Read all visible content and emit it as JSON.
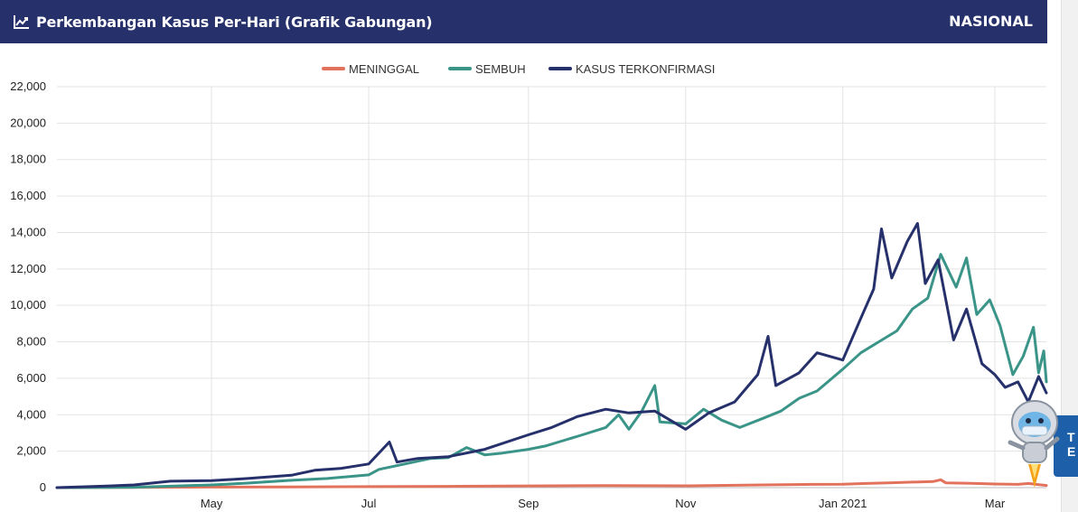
{
  "header": {
    "title": "Perkembangan Kasus Per-Hari (Grafik Gabungan)",
    "badge": "NASIONAL",
    "icon": "line-chart-icon",
    "bg_color": "#26306b"
  },
  "side_tab": {
    "text_line1": "T",
    "text_line2": "E"
  },
  "chart_data": {
    "type": "line",
    "title": "Perkembangan Kasus Per-Hari (Grafik Gabungan)",
    "xlabel": "",
    "ylabel": "",
    "x_start": "2020-03-02",
    "x_end": "2021-03-21",
    "x_ticks": [
      {
        "label": "May",
        "date": "2020-05-01"
      },
      {
        "label": "Jul",
        "date": "2020-07-01"
      },
      {
        "label": "Sep",
        "date": "2020-09-01"
      },
      {
        "label": "Nov",
        "date": "2020-11-01"
      },
      {
        "label": "Jan 2021",
        "date": "2021-01-01"
      },
      {
        "label": "Mar",
        "date": "2021-03-01"
      }
    ],
    "ylim": [
      0,
      22000
    ],
    "y_ticks": [
      "0",
      "2,000",
      "4,000",
      "6,000",
      "8,000",
      "10,000",
      "12,000",
      "14,000",
      "16,000",
      "18,000",
      "20,000",
      "22,000"
    ],
    "grid": true,
    "legend_position": "top-center",
    "series": [
      {
        "name": "MENINGGAL",
        "color": "#e2725b",
        "points": [
          [
            "2020-03-02",
            0
          ],
          [
            "2020-04-01",
            15
          ],
          [
            "2020-05-01",
            30
          ],
          [
            "2020-06-01",
            40
          ],
          [
            "2020-07-01",
            55
          ],
          [
            "2020-08-01",
            70
          ],
          [
            "2020-09-01",
            95
          ],
          [
            "2020-10-01",
            110
          ],
          [
            "2020-11-01",
            100
          ],
          [
            "2020-12-01",
            150
          ],
          [
            "2020-12-20",
            180
          ],
          [
            "2021-01-01",
            190
          ],
          [
            "2021-01-10",
            230
          ],
          [
            "2021-01-20",
            270
          ],
          [
            "2021-01-28",
            300
          ],
          [
            "2021-02-05",
            330
          ],
          [
            "2021-02-08",
            430
          ],
          [
            "2021-02-10",
            260
          ],
          [
            "2021-02-20",
            240
          ],
          [
            "2021-03-01",
            200
          ],
          [
            "2021-03-10",
            180
          ],
          [
            "2021-03-14",
            230
          ],
          [
            "2021-03-21",
            120
          ]
        ]
      },
      {
        "name": "SEMBUH",
        "color": "#3a9488",
        "points": [
          [
            "2020-03-02",
            0
          ],
          [
            "2020-04-01",
            20
          ],
          [
            "2020-04-15",
            80
          ],
          [
            "2020-05-01",
            150
          ],
          [
            "2020-05-15",
            250
          ],
          [
            "2020-06-01",
            400
          ],
          [
            "2020-06-15",
            500
          ],
          [
            "2020-07-01",
            700
          ],
          [
            "2020-07-05",
            1000
          ],
          [
            "2020-07-15",
            1300
          ],
          [
            "2020-07-25",
            1600
          ],
          [
            "2020-08-01",
            1650
          ],
          [
            "2020-08-08",
            2200
          ],
          [
            "2020-08-15",
            1800
          ],
          [
            "2020-08-22",
            1900
          ],
          [
            "2020-09-01",
            2100
          ],
          [
            "2020-09-08",
            2300
          ],
          [
            "2020-09-15",
            2600
          ],
          [
            "2020-09-22",
            2900
          ],
          [
            "2020-10-01",
            3300
          ],
          [
            "2020-10-06",
            4000
          ],
          [
            "2020-10-10",
            3200
          ],
          [
            "2020-10-15",
            4200
          ],
          [
            "2020-10-20",
            5600
          ],
          [
            "2020-10-22",
            3600
          ],
          [
            "2020-11-01",
            3500
          ],
          [
            "2020-11-08",
            4300
          ],
          [
            "2020-11-15",
            3700
          ],
          [
            "2020-11-22",
            3300
          ],
          [
            "2020-12-01",
            3800
          ],
          [
            "2020-12-08",
            4200
          ],
          [
            "2020-12-15",
            4900
          ],
          [
            "2020-12-22",
            5300
          ],
          [
            "2021-01-01",
            6500
          ],
          [
            "2021-01-08",
            7400
          ],
          [
            "2021-01-15",
            8000
          ],
          [
            "2021-01-22",
            8600
          ],
          [
            "2021-01-28",
            9800
          ],
          [
            "2021-02-03",
            10400
          ],
          [
            "2021-02-08",
            12800
          ],
          [
            "2021-02-14",
            11000
          ],
          [
            "2021-02-18",
            12600
          ],
          [
            "2021-02-22",
            9500
          ],
          [
            "2021-02-27",
            10300
          ],
          [
            "2021-03-03",
            8900
          ],
          [
            "2021-03-08",
            6200
          ],
          [
            "2021-03-12",
            7200
          ],
          [
            "2021-03-16",
            8800
          ],
          [
            "2021-03-18",
            6300
          ],
          [
            "2021-03-20",
            7500
          ],
          [
            "2021-03-21",
            5800
          ]
        ]
      },
      {
        "name": "KASUS TERKONFIRMASI",
        "color": "#26306b",
        "points": [
          [
            "2020-03-02",
            0
          ],
          [
            "2020-03-20",
            80
          ],
          [
            "2020-04-01",
            150
          ],
          [
            "2020-04-15",
            350
          ],
          [
            "2020-05-01",
            380
          ],
          [
            "2020-05-15",
            500
          ],
          [
            "2020-06-01",
            680
          ],
          [
            "2020-06-10",
            950
          ],
          [
            "2020-06-20",
            1050
          ],
          [
            "2020-07-01",
            1300
          ],
          [
            "2020-07-09",
            2500
          ],
          [
            "2020-07-12",
            1400
          ],
          [
            "2020-07-20",
            1600
          ],
          [
            "2020-08-01",
            1700
          ],
          [
            "2020-08-15",
            2100
          ],
          [
            "2020-09-01",
            2900
          ],
          [
            "2020-09-10",
            3300
          ],
          [
            "2020-09-20",
            3900
          ],
          [
            "2020-10-01",
            4300
          ],
          [
            "2020-10-10",
            4100
          ],
          [
            "2020-10-20",
            4200
          ],
          [
            "2020-11-01",
            3200
          ],
          [
            "2020-11-10",
            4100
          ],
          [
            "2020-11-20",
            4700
          ],
          [
            "2020-11-29",
            6200
          ],
          [
            "2020-12-03",
            8300
          ],
          [
            "2020-12-06",
            5600
          ],
          [
            "2020-12-15",
            6300
          ],
          [
            "2020-12-22",
            7400
          ],
          [
            "2021-01-01",
            7000
          ],
          [
            "2021-01-08",
            9300
          ],
          [
            "2021-01-13",
            10900
          ],
          [
            "2021-01-16",
            14200
          ],
          [
            "2021-01-20",
            11500
          ],
          [
            "2021-01-26",
            13500
          ],
          [
            "2021-01-30",
            14500
          ],
          [
            "2021-02-02",
            11200
          ],
          [
            "2021-02-07",
            12500
          ],
          [
            "2021-02-13",
            8100
          ],
          [
            "2021-02-18",
            9800
          ],
          [
            "2021-02-24",
            6800
          ],
          [
            "2021-03-01",
            6200
          ],
          [
            "2021-03-05",
            5500
          ],
          [
            "2021-03-10",
            5800
          ],
          [
            "2021-03-14",
            4700
          ],
          [
            "2021-03-18",
            6100
          ],
          [
            "2021-03-21",
            5200
          ]
        ]
      }
    ]
  }
}
